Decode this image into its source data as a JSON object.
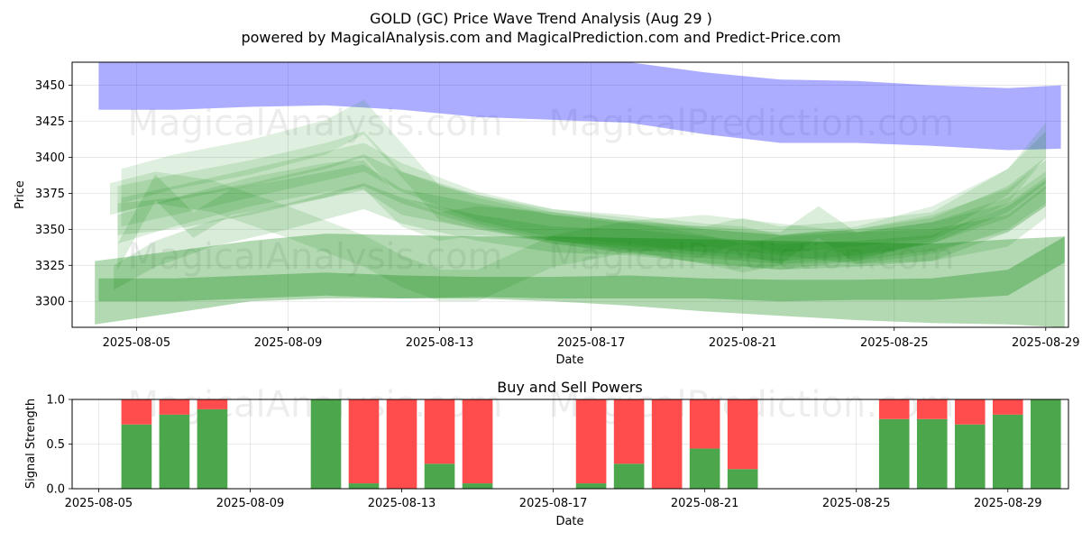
{
  "chart_data": [
    {
      "type": "area",
      "title": "GOLD (GC) Price Wave Trend Analysis (Aug 29 )",
      "subtitle": "powered by MagicalAnalysis.com and MagicalPrediction.com and Predict-Price.com",
      "xlabel": "Date",
      "ylabel": "Price",
      "xlim": [
        -0.7,
        25.6
      ],
      "ylim": [
        3282,
        3466
      ],
      "x_ticks": [
        {
          "pos": 1,
          "label": "2025-08-05"
        },
        {
          "pos": 5,
          "label": "2025-08-09"
        },
        {
          "pos": 9,
          "label": "2025-08-13"
        },
        {
          "pos": 13,
          "label": "2025-08-17"
        },
        {
          "pos": 17,
          "label": "2025-08-21"
        },
        {
          "pos": 21,
          "label": "2025-08-25"
        },
        {
          "pos": 25,
          "label": "2025-08-29"
        }
      ],
      "y_ticks": [
        3300,
        3325,
        3350,
        3375,
        3400,
        3425,
        3450
      ],
      "watermark": "MagicalAnalysis.com    MagicalPrediction.com",
      "bands": [
        {
          "name": "blue-trend",
          "color": "#0000ff",
          "alpha": 0.32,
          "x": [
            0,
            2,
            4,
            6,
            8,
            10,
            12,
            14,
            16,
            18,
            20,
            22,
            24,
            25.4
          ],
          "upper": [
            3466,
            3466,
            3466,
            3466,
            3466,
            3466,
            3466,
            3466,
            3459,
            3454,
            3453,
            3450,
            3448,
            3450
          ],
          "lower": [
            3433,
            3433,
            3435,
            3436,
            3433,
            3428,
            3426,
            3424,
            3416,
            3410,
            3410,
            3408,
            3405,
            3406
          ]
        },
        {
          "name": "green-long-1",
          "color": "#008000",
          "alpha": 0.3,
          "x": [
            -0.1,
            2,
            4,
            6,
            8,
            10,
            12,
            14,
            16,
            18,
            20,
            22,
            24,
            25.5
          ],
          "upper": [
            3328,
            3335,
            3342,
            3347,
            3346,
            3345,
            3345,
            3344,
            3343,
            3342,
            3341,
            3340,
            3343,
            3345
          ],
          "lower": [
            3284,
            3292,
            3300,
            3302,
            3302,
            3302,
            3300,
            3297,
            3293,
            3290,
            3287,
            3285,
            3284,
            3282
          ]
        },
        {
          "name": "green-long-2",
          "color": "#008000",
          "alpha": 0.3,
          "x": [
            0,
            2,
            4,
            6,
            8,
            10,
            12,
            14,
            16,
            18,
            20,
            22,
            24,
            25.5
          ],
          "upper": [
            3316,
            3316,
            3318,
            3320,
            3318,
            3317,
            3317,
            3318,
            3316,
            3315,
            3315,
            3316,
            3322,
            3345
          ],
          "lower": [
            3300,
            3300,
            3302,
            3304,
            3302,
            3303,
            3302,
            3302,
            3302,
            3300,
            3301,
            3301,
            3304,
            3327
          ]
        },
        {
          "name": "green-wave-1",
          "color": "#008000",
          "alpha": 0.13,
          "x": [
            0.5,
            2,
            4,
            6,
            7,
            8,
            10,
            12,
            14,
            16,
            17,
            18,
            20,
            22,
            24,
            25
          ],
          "upper": [
            3380,
            3388,
            3398,
            3410,
            3418,
            3390,
            3372,
            3360,
            3356,
            3352,
            3358,
            3352,
            3356,
            3362,
            3392,
            3418
          ],
          "lower": [
            3362,
            3370,
            3380,
            3392,
            3400,
            3372,
            3354,
            3342,
            3338,
            3334,
            3340,
            3334,
            3338,
            3344,
            3374,
            3400
          ]
        },
        {
          "name": "green-wave-2",
          "color": "#008000",
          "alpha": 0.13,
          "x": [
            0.6,
            2,
            4,
            6,
            7,
            8,
            10,
            12,
            14,
            16,
            17,
            18,
            20,
            22,
            24,
            25
          ],
          "upper": [
            3372,
            3380,
            3392,
            3404,
            3410,
            3396,
            3376,
            3364,
            3360,
            3354,
            3352,
            3346,
            3350,
            3360,
            3378,
            3398
          ],
          "lower": [
            3352,
            3360,
            3372,
            3384,
            3390,
            3376,
            3356,
            3344,
            3340,
            3334,
            3332,
            3326,
            3330,
            3340,
            3358,
            3378
          ]
        },
        {
          "name": "green-wave-3",
          "color": "#008000",
          "alpha": 0.13,
          "x": [
            0.5,
            2,
            4,
            6,
            7,
            8,
            9,
            10,
            12,
            14,
            16,
            17,
            18,
            20,
            22,
            24,
            25
          ],
          "upper": [
            3360,
            3372,
            3386,
            3396,
            3398,
            3372,
            3362,
            3366,
            3362,
            3355,
            3346,
            3340,
            3345,
            3348,
            3355,
            3368,
            3386
          ],
          "lower": [
            3340,
            3352,
            3366,
            3376,
            3378,
            3352,
            3342,
            3346,
            3342,
            3335,
            3326,
            3320,
            3325,
            3328,
            3335,
            3348,
            3366
          ]
        },
        {
          "name": "green-wave-4",
          "color": "#008000",
          "alpha": 0.15,
          "x": [
            0.4,
            1.5,
            3,
            5,
            7,
            8,
            10,
            12,
            14,
            16,
            18,
            20,
            22,
            24,
            25
          ],
          "upper": [
            3325,
            3342,
            3356,
            3368,
            3382,
            3372,
            3360,
            3352,
            3350,
            3345,
            3340,
            3342,
            3346,
            3366,
            3384
          ],
          "lower": [
            3308,
            3324,
            3338,
            3350,
            3364,
            3354,
            3342,
            3334,
            3332,
            3327,
            3322,
            3324,
            3328,
            3348,
            3366
          ]
        },
        {
          "name": "green-wave-5",
          "color": "#008000",
          "alpha": 0.13,
          "x": [
            0.3,
            1.5,
            3,
            5,
            7,
            8,
            9,
            10,
            11,
            12,
            14,
            16,
            18,
            20,
            22,
            24,
            25
          ],
          "upper": [
            3382,
            3390,
            3384,
            3366,
            3346,
            3332,
            3322,
            3322,
            3334,
            3346,
            3356,
            3360,
            3354,
            3348,
            3355,
            3372,
            3390
          ],
          "lower": [
            3360,
            3368,
            3362,
            3344,
            3324,
            3310,
            3300,
            3300,
            3312,
            3324,
            3334,
            3338,
            3332,
            3326,
            3333,
            3350,
            3368
          ]
        },
        {
          "name": "green-wave-6",
          "color": "#008000",
          "alpha": 0.14,
          "x": [
            0.5,
            1.5,
            2.5,
            3.5,
            5,
            7,
            8,
            10,
            12,
            14,
            16,
            18,
            20,
            22,
            24,
            25
          ],
          "upper": [
            3340,
            3388,
            3362,
            3378,
            3385,
            3395,
            3378,
            3368,
            3360,
            3354,
            3350,
            3346,
            3350,
            3358,
            3380,
            3400
          ],
          "lower": [
            3322,
            3370,
            3344,
            3360,
            3367,
            3377,
            3360,
            3350,
            3342,
            3336,
            3332,
            3328,
            3332,
            3340,
            3362,
            3382
          ]
        },
        {
          "name": "green-wave-7",
          "color": "#008000",
          "alpha": 0.12,
          "x": [
            0.6,
            2,
            4,
            6,
            7,
            8,
            9,
            10,
            12,
            14,
            16,
            18,
            20,
            22,
            24,
            25
          ],
          "upper": [
            3392,
            3402,
            3412,
            3426,
            3440,
            3410,
            3380,
            3374,
            3364,
            3358,
            3350,
            3346,
            3352,
            3366,
            3392,
            3424
          ],
          "lower": [
            3368,
            3378,
            3388,
            3402,
            3416,
            3386,
            3356,
            3350,
            3340,
            3334,
            3326,
            3322,
            3328,
            3342,
            3368,
            3400
          ]
        },
        {
          "name": "green-wave-8",
          "color": "#008000",
          "alpha": 0.14,
          "x": [
            0.5,
            2,
            4,
            6,
            7,
            8,
            10,
            12,
            14,
            16,
            18,
            19,
            20,
            22,
            24,
            25
          ],
          "upper": [
            3368,
            3372,
            3382,
            3394,
            3402,
            3390,
            3374,
            3362,
            3355,
            3352,
            3348,
            3366,
            3348,
            3350,
            3360,
            3380
          ],
          "lower": [
            3346,
            3350,
            3360,
            3372,
            3380,
            3368,
            3352,
            3340,
            3333,
            3330,
            3326,
            3344,
            3326,
            3328,
            3338,
            3358
          ]
        }
      ]
    },
    {
      "type": "bar",
      "title": "Buy and Sell Powers",
      "xlabel": "Date",
      "ylabel": "Signal Strength",
      "xlim": [
        -0.7,
        25.6
      ],
      "ylim": [
        0,
        1.0
      ],
      "y_ticks": [
        "0.0",
        "0.5",
        "1.0"
      ],
      "x_ticks": [
        {
          "pos": 0,
          "label": "2025-08-05"
        },
        {
          "pos": 4,
          "label": "2025-08-09"
        },
        {
          "pos": 8,
          "label": "2025-08-13"
        },
        {
          "pos": 12,
          "label": "2025-08-17"
        },
        {
          "pos": 16,
          "label": "2025-08-21"
        },
        {
          "pos": 20,
          "label": "2025-08-25"
        },
        {
          "pos": 24,
          "label": "2025-08-29"
        }
      ],
      "watermark": "MagicalAnalysis.com    MagicalPrediction.com",
      "series": [
        {
          "name": "Buy",
          "color": "#4ca64c"
        },
        {
          "name": "Sell",
          "color": "#ff4c4c"
        }
      ],
      "bars": [
        {
          "x": 1,
          "buy": 0.72
        },
        {
          "x": 2,
          "buy": 0.83
        },
        {
          "x": 3,
          "buy": 0.89
        },
        {
          "x": 6,
          "buy": 1.0
        },
        {
          "x": 7,
          "buy": 0.06
        },
        {
          "x": 8,
          "buy": 0.0
        },
        {
          "x": 9,
          "buy": 0.28
        },
        {
          "x": 10,
          "buy": 0.06
        },
        {
          "x": 13,
          "buy": 0.06
        },
        {
          "x": 14,
          "buy": 0.28
        },
        {
          "x": 15,
          "buy": 0.0
        },
        {
          "x": 16,
          "buy": 0.45
        },
        {
          "x": 17,
          "buy": 0.22
        },
        {
          "x": 21,
          "buy": 0.78
        },
        {
          "x": 22,
          "buy": 0.78
        },
        {
          "x": 23,
          "buy": 0.72
        },
        {
          "x": 24,
          "buy": 0.83
        },
        {
          "x": 25,
          "buy": 1.0
        }
      ]
    }
  ]
}
